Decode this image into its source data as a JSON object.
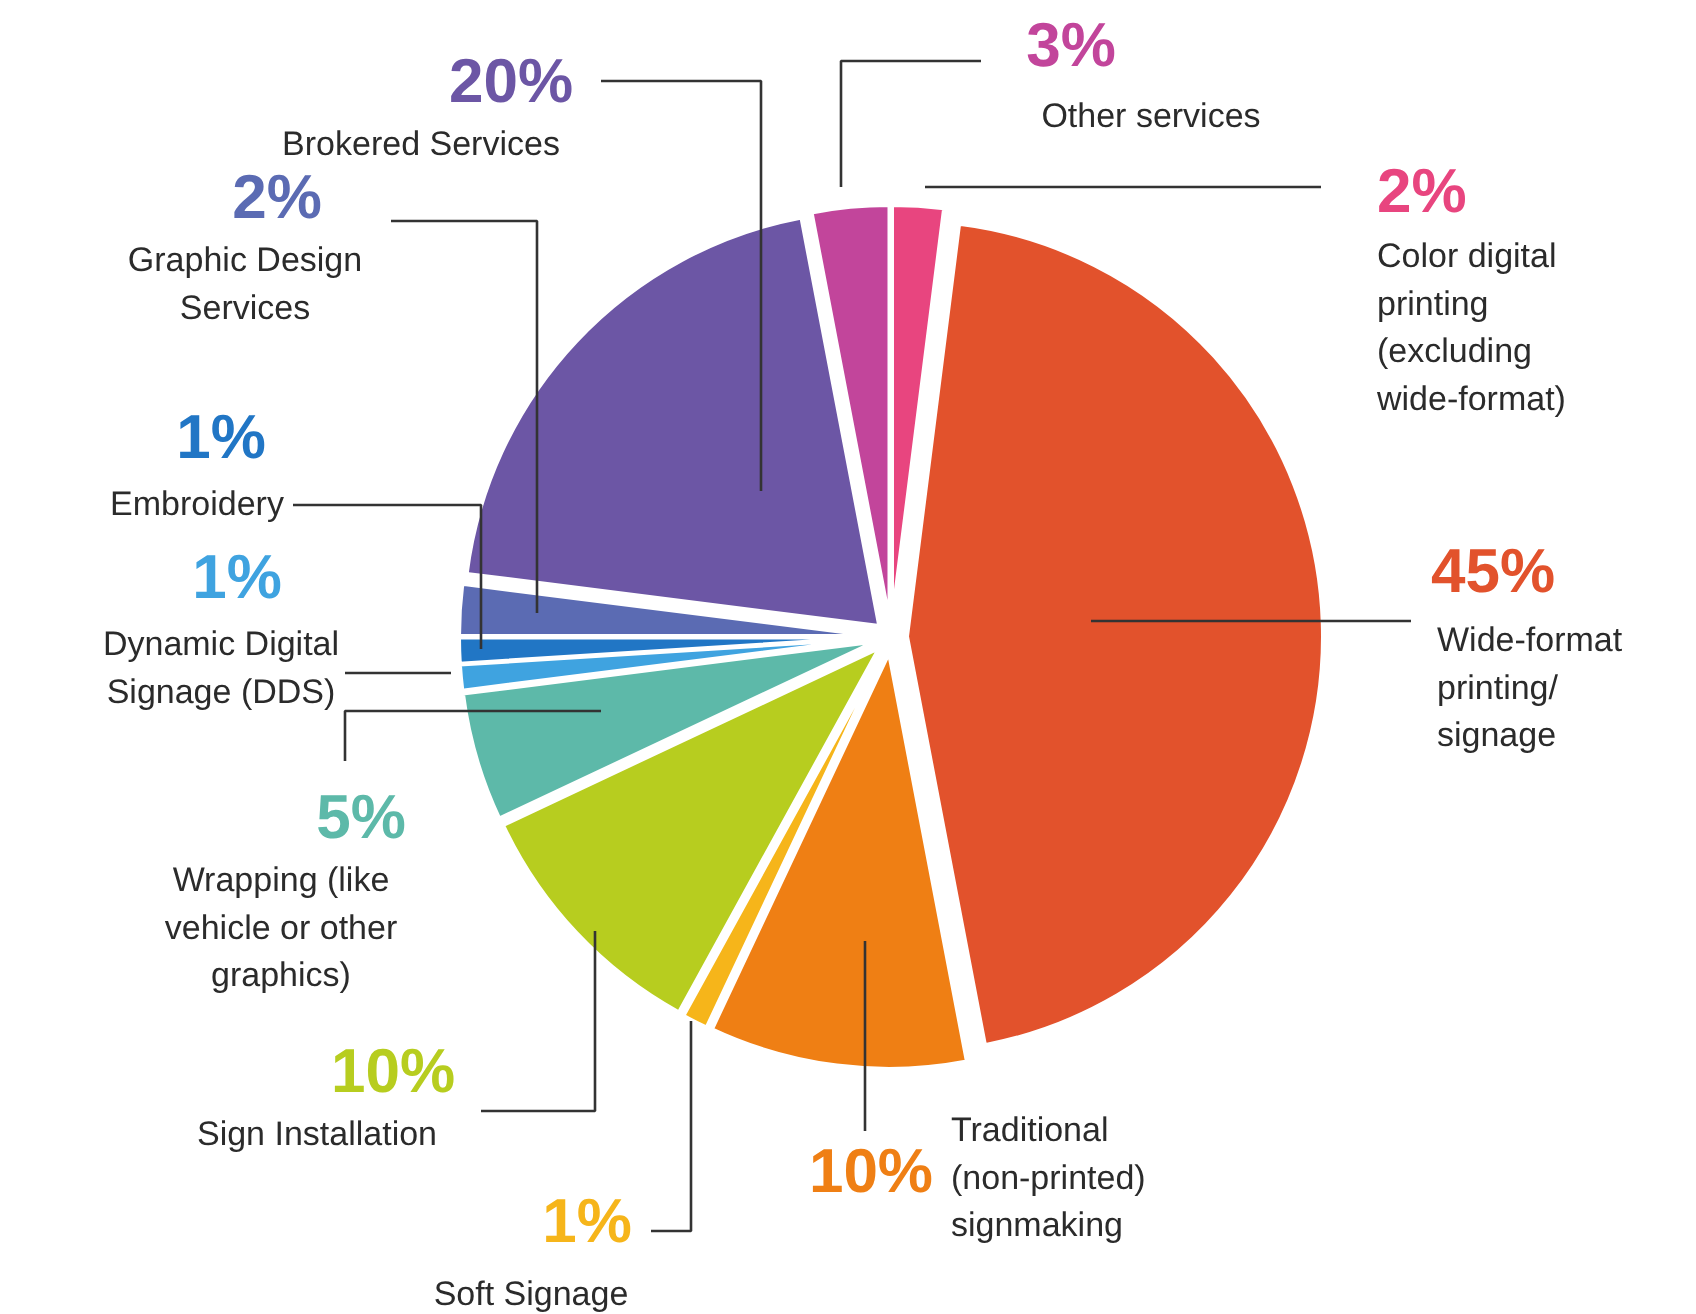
{
  "chart_data": {
    "type": "pie",
    "categories": [
      "Color digital printing (excluding wide-format)",
      "Wide-format printing/ signage",
      "Traditional (non-printed) signmaking",
      "Soft Signage",
      "Sign Installation",
      "Wrapping (like vehicle or other graphics)",
      "Dynamic Digital Signage (DDS)",
      "Embroidery",
      "Graphic Design Services",
      "Brokered Services",
      "Other services"
    ],
    "values": [
      2,
      45,
      10,
      1,
      10,
      5,
      1,
      1,
      2,
      20,
      3
    ],
    "value_labels": [
      "2%",
      "45%",
      "10%",
      "1%",
      "10%",
      "5%",
      "1%",
      "1%",
      "2%",
      "20%",
      "3%"
    ],
    "colors": [
      "#e8457f",
      "#e2522c",
      "#ef7f14",
      "#f6b51a",
      "#b7cd1f",
      "#5db9a9",
      "#3fa3e0",
      "#2176c5",
      "#5b6bb3",
      "#6c56a5",
      "#c2459b"
    ]
  }
}
